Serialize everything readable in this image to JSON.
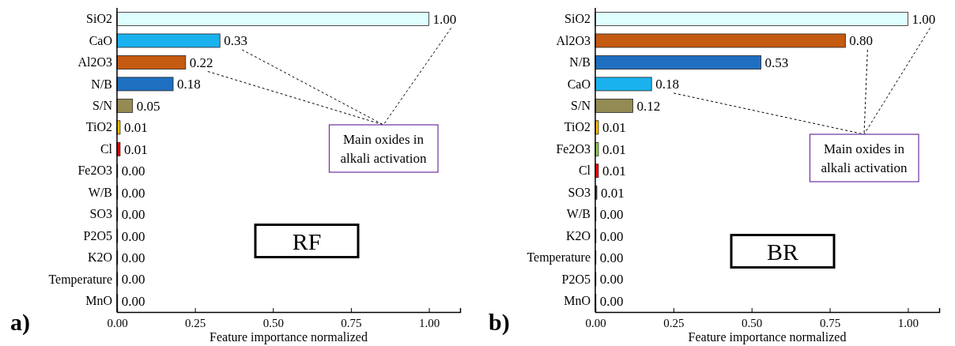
{
  "chart_data": [
    {
      "type": "bar",
      "orientation": "horizontal",
      "title": "RF",
      "xlabel": "Feature importance normalized",
      "categories": [
        "SiO2",
        "CaO",
        "Al2O3",
        "N/B",
        "S/N",
        "TiO2",
        "Cl",
        "Fe2O3",
        "W/B",
        "SO3",
        "P2O5",
        "K2O",
        "Temperature",
        "MnO"
      ],
      "values": [
        1.0,
        0.33,
        0.22,
        0.18,
        0.05,
        0.01,
        0.01,
        0.002,
        0.002,
        0.002,
        0.002,
        0.002,
        0.002,
        0.002
      ],
      "value_labels": [
        "1.00",
        "0.33",
        "0.22",
        "0.18",
        "0.05",
        "0.01",
        "0.01",
        "0.00",
        "0.00",
        "0.00",
        "0.00",
        "0.00",
        "0.00",
        "0.00"
      ],
      "colors": [
        "#e0ffff",
        "#1ab2ee",
        "#c55a11",
        "#1f6fc0",
        "#948a54",
        "#ffc000",
        "#ff0000",
        "#375623",
        "#404040",
        "#404040",
        "#404040",
        "#404040",
        "#404040",
        "#404040"
      ],
      "xlim": [
        0,
        1.1
      ],
      "xticks": [
        {
          "value": 0,
          "label": "0.00"
        },
        {
          "value": 0.25,
          "label": "0.25"
        },
        {
          "value": 0.5,
          "label": "0.50"
        },
        {
          "value": 0.75,
          "label": "0.75"
        },
        {
          "value": 1,
          "label": "1.00"
        }
      ],
      "grid": false,
      "annotations": [
        "a)",
        "Main oxides in alkali activation"
      ]
    },
    {
      "type": "bar",
      "orientation": "horizontal",
      "title": "BR",
      "xlabel": "Feature importance normalized",
      "categories": [
        "SiO2",
        "Al2O3",
        "N/B",
        "CaO",
        "S/N",
        "TiO2",
        "Fe2O3",
        "Cl",
        "SO3",
        "W/B",
        "K2O",
        "Temperature",
        "P2O5",
        "MnO"
      ],
      "values": [
        1.0,
        0.8,
        0.53,
        0.18,
        0.12,
        0.01,
        0.01,
        0.01,
        0.005,
        0.002,
        0.002,
        0.002,
        0.002,
        0.002
      ],
      "value_labels": [
        "1.00",
        "0.80",
        "0.53",
        "0.18",
        "0.12",
        "0.01",
        "0.01",
        "0.01",
        "0.01",
        "0.00",
        "0.00",
        "0.00",
        "0.00",
        "0.00"
      ],
      "colors": [
        "#e0ffff",
        "#c55a11",
        "#1f6fc0",
        "#1ab2ee",
        "#948a54",
        "#ffc000",
        "#92d050",
        "#ff0000",
        "#404040",
        "#404040",
        "#404040",
        "#404040",
        "#404040",
        "#404040"
      ],
      "xlim": [
        0,
        1.1
      ],
      "xticks": [
        {
          "value": 0,
          "label": "0.00"
        },
        {
          "value": 0.25,
          "label": "0.25"
        },
        {
          "value": 0.5,
          "label": "0.50"
        },
        {
          "value": 0.75,
          "label": "0.75"
        },
        {
          "value": 1,
          "label": "1.00"
        }
      ],
      "grid": false,
      "annotations": [
        "b)",
        "Main oxides in alkali activation"
      ]
    }
  ]
}
